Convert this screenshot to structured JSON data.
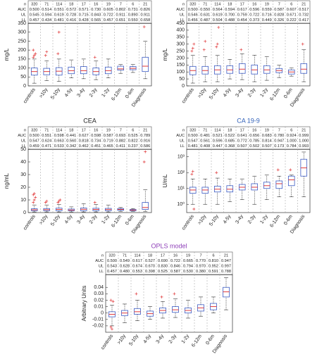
{
  "chart_data": [
    {
      "type": "box",
      "ylabel": "mg/L",
      "categories": [
        "controls",
        ">10y",
        "5-10y",
        "4-5y",
        "3-4y",
        "2-3y",
        "1-2y",
        "6-12m",
        "0-6m",
        "Diagnosis"
      ],
      "table": [
        {
          "label": "n",
          "values": [
            320,
            71,
            114,
            18,
            17,
            16,
            19,
            7,
            6,
            21
          ]
        },
        {
          "label": "AUC",
          "values": [
            "0.500",
            "0.514",
            "0.551",
            "0.572",
            "0.571",
            "0.730",
            "0.605",
            "0.802",
            "0.731",
            "0.826"
          ]
        },
        {
          "label": "UL",
          "values": [
            "0.545",
            "0.594",
            "0.619",
            "0.728",
            "0.715",
            "0.843",
            "0.722",
            "0.911",
            "0.890",
            "0.911"
          ]
        },
        {
          "label": "LL",
          "values": [
            "0.457",
            "0.434",
            "0.481",
            "0.416",
            "0.428",
            "0.565",
            "0.457",
            "0.651",
            "0.550",
            "0.658"
          ]
        }
      ],
      "ylim": [
        0,
        350
      ],
      "yticks": [
        0,
        50,
        100,
        150,
        200,
        250,
        300,
        350
      ],
      "low": [
        15,
        30,
        25,
        45,
        40,
        35,
        45,
        70,
        75,
        40
      ],
      "q1": [
        60,
        62,
        60,
        68,
        68,
        62,
        68,
        88,
        90,
        80
      ],
      "median": [
        80,
        80,
        82,
        85,
        85,
        80,
        85,
        95,
        98,
        110
      ],
      "q3": [
        100,
        98,
        102,
        105,
        108,
        100,
        105,
        110,
        108,
        160
      ],
      "high": [
        150,
        140,
        150,
        145,
        150,
        140,
        150,
        120,
        120,
        250
      ],
      "outliers": [
        [
          160,
          170,
          180,
          200
        ],
        [
          170,
          190
        ],
        [
          180,
          300
        ],
        [],
        [],
        [
          160
        ],
        [],
        [],
        [],
        [
          330
        ]
      ],
      "box_color": "#3b5bc4",
      "median_color": "#e0383a",
      "outlier_color": "#e0383a"
    },
    {
      "type": "box",
      "ylabel": "mg/L",
      "categories": [
        "controls",
        ">10y",
        "5-10y",
        "4-5y",
        "3-4y",
        "2-3y",
        "1-2y",
        "6-12m",
        "0-6m",
        "Diagnosis"
      ],
      "table": [
        {
          "label": "n",
          "values": [
            320,
            71,
            114,
            18,
            17,
            16,
            19,
            7,
            6,
            21
          ]
        },
        {
          "label": "AUC",
          "values": [
            "0.500",
            "0.550",
            "0.564",
            "0.594",
            "0.617",
            "0.596",
            "0.559",
            "0.587",
            "0.607",
            "0.517"
          ]
        },
        {
          "label": "UL",
          "values": [
            "0.546",
            "0.631",
            "0.619",
            "0.700",
            "0.759",
            "0.722",
            "0.716",
            "0.828",
            "0.671",
            "0.732"
          ]
        },
        {
          "label": "LL",
          "values": [
            "0.456",
            "0.487",
            "0.504",
            "0.488",
            "0.454",
            "0.373",
            "0.449",
            "0.326",
            "0.222",
            "0.417"
          ]
        }
      ],
      "ylim": [
        0,
        450
      ],
      "yticks": [
        0,
        50,
        100,
        150,
        200,
        250,
        300,
        350,
        400,
        450
      ],
      "low": [
        20,
        30,
        30,
        50,
        45,
        30,
        40,
        60,
        70,
        30
      ],
      "q1": [
        80,
        85,
        85,
        90,
        90,
        85,
        90,
        95,
        85,
        90
      ],
      "median": [
        110,
        110,
        115,
        115,
        120,
        115,
        115,
        110,
        100,
        120
      ],
      "q3": [
        140,
        140,
        145,
        145,
        160,
        150,
        145,
        125,
        115,
        160
      ],
      "high": [
        220,
        210,
        220,
        190,
        230,
        220,
        210,
        150,
        130,
        260
      ],
      "outliers": [
        [
          250,
          270,
          300
        ],
        [
          260,
          320
        ],
        [
          280,
          300,
          420
        ],
        [],
        [
          260
        ],
        [],
        [],
        [],
        [],
        [
          300
        ]
      ],
      "box_color": "#3b5bc4",
      "median_color": "#e0383a",
      "outlier_color": "#e0383a"
    },
    {
      "type": "box",
      "title": "CEA",
      "title_color": "#222222",
      "ylabel": "ng/mL",
      "categories": [
        "controls",
        ">10y",
        "5-10y",
        "4-5y",
        "3-4y",
        "2-3y",
        "1-2y",
        "6-12m",
        "0-6m",
        "Diagnosis"
      ],
      "table": [
        {
          "label": "n",
          "values": [
            320,
            71,
            114,
            18,
            17,
            16,
            19,
            7,
            6,
            21
          ]
        },
        {
          "label": "AUC",
          "values": [
            "0.500",
            "0.551",
            "0.598",
            "0.441",
            "0.627",
            "0.598",
            "0.587",
            "0.693",
            "0.525",
            "0.789"
          ]
        },
        {
          "label": "UL",
          "values": [
            "0.547",
            "0.624",
            "0.663",
            "0.560",
            "0.818",
            "0.734",
            "0.719",
            "0.882",
            "0.822",
            "0.916"
          ]
        },
        {
          "label": "LL",
          "values": [
            "0.459",
            "0.471",
            "0.533",
            "0.342",
            "0.462",
            "0.451",
            "0.465",
            "0.411",
            "0.237",
            "0.586"
          ]
        }
      ],
      "ylim": [
        0,
        50
      ],
      "yticks": [
        0,
        10,
        20,
        30,
        40,
        50
      ],
      "low": [
        0.5,
        0.5,
        0.5,
        0.5,
        0.5,
        0.5,
        0.5,
        1,
        1,
        1
      ],
      "q1": [
        1.5,
        1.5,
        1.5,
        1.5,
        1.5,
        1.5,
        1.5,
        1.8,
        1.5,
        2.5
      ],
      "median": [
        2.2,
        2.3,
        2.5,
        2,
        2.6,
        2.5,
        2.4,
        2.5,
        2,
        4
      ],
      "q3": [
        3,
        3.2,
        3.5,
        2.8,
        3.6,
        3.4,
        3.3,
        3.2,
        2.5,
        8
      ],
      "high": [
        6,
        6,
        6.5,
        4.5,
        7,
        6.5,
        6,
        4,
        3.2,
        18
      ],
      "outliers": [
        [
          8,
          10,
          12,
          14,
          15
        ],
        [
          8,
          9
        ],
        [
          8,
          9,
          10
        ],
        [],
        [],
        [
          8
        ],
        [],
        [],
        [],
        [
          40,
          48
        ]
      ],
      "box_color": "#3b5bc4",
      "median_color": "#e0383a",
      "outlier_color": "#e0383a"
    },
    {
      "type": "box",
      "title": "CA 19-9",
      "title_color": "#2f5fb8",
      "ylabel": "U/mL",
      "log_scale": true,
      "categories": [
        "controls",
        ">10y",
        "5-10y",
        "4-5y",
        "3-4y",
        "2-3y",
        "1-2y",
        "6-12m",
        "0-6m",
        "Diagnosis"
      ],
      "table": [
        {
          "label": "n",
          "values": [
            320,
            71,
            114,
            18,
            17,
            16,
            19,
            7,
            6,
            21
          ]
        },
        {
          "label": "AUC",
          "values": [
            "0.500",
            "0.481",
            "0.521",
            "0.522",
            "0.641",
            "0.656",
            "0.683",
            "0.780",
            "0.924",
            "0.999"
          ]
        },
        {
          "label": "UL",
          "values": [
            "0.547",
            "0.561",
            "0.596",
            "0.685",
            "0.772",
            "0.785",
            "0.814",
            "0.947",
            "1.000",
            "1.000"
          ]
        },
        {
          "label": "LL",
          "values": [
            "0.481",
            "0.408",
            "0.447",
            "0.368",
            "0.507",
            "0.502",
            "0.507",
            "0.173",
            "0.784",
            "0.993"
          ]
        }
      ],
      "ylim": [
        0.3,
        3000
      ],
      "yticks": [
        {
          "value": 1,
          "label": "10⁰"
        },
        {
          "value": 10,
          "label": "10¹"
        },
        {
          "value": 100,
          "label": "10²"
        },
        {
          "value": 1000,
          "label": "10³"
        }
      ],
      "low": [
        1,
        1,
        1,
        1.5,
        2,
        1,
        2,
        3,
        3,
        3
      ],
      "q1": [
        5,
        5,
        6,
        6,
        8,
        8,
        10,
        10,
        15,
        60
      ],
      "median": [
        8,
        8,
        9,
        9,
        12,
        12,
        15,
        20,
        35,
        200
      ],
      "q3": [
        12,
        12,
        14,
        15,
        18,
        20,
        25,
        30,
        60,
        700
      ],
      "high": [
        40,
        40,
        45,
        40,
        40,
        60,
        70,
        60,
        70,
        2000
      ],
      "outliers": [
        [
          80,
          120,
          0.5
        ],
        [],
        [
          100
        ],
        [],
        [],
        [],
        [],
        [
          150
        ],
        [
          150
        ],
        []
      ],
      "box_color": "#3b5bc4",
      "median_color": "#e0383a",
      "outlier_color": "#e0383a"
    },
    {
      "type": "box",
      "title": "OPLS model",
      "title_color": "#8e3fb8",
      "ylabel": "Arbitrary Units",
      "categories": [
        "controls",
        ">10y",
        "5-10y",
        "4-5y",
        "3-4y",
        "2-3y",
        "1-2y",
        "6-12m",
        "0-6m",
        "Diagnosis"
      ],
      "table": [
        {
          "label": "n",
          "values": [
            320,
            71,
            114,
            18,
            17,
            16,
            19,
            7,
            6,
            21
          ]
        },
        {
          "label": "AUC",
          "values": [
            "0.500",
            "0.549",
            "0.617",
            "0.527",
            "0.690",
            "0.722",
            "0.665",
            "0.770",
            "0.810",
            "0.947"
          ]
        },
        {
          "label": "UL",
          "values": [
            "0.543",
            "0.628",
            "0.674",
            "0.670",
            "0.830",
            "0.846",
            "0.794",
            "0.970",
            "0.952",
            "0.997"
          ]
        },
        {
          "label": "LL",
          "values": [
            "0.457",
            "0.480",
            "0.553",
            "0.398",
            "0.525",
            "0.587",
            "0.530",
            "0.380",
            "0.591",
            "0.788"
          ]
        }
      ],
      "ylim": [
        -0.03,
        0.06
      ],
      "yticks": [
        -0.02,
        -0.01,
        0,
        0.01,
        0.02,
        0.03,
        0.04
      ],
      "low": [
        -0.02,
        -0.015,
        -0.012,
        -0.01,
        -0.008,
        -0.007,
        -0.008,
        -0.005,
        0,
        0.005
      ],
      "q1": [
        -0.006,
        -0.004,
        -0.002,
        -0.005,
        0,
        0.001,
        0,
        0.003,
        0.005,
        0.025
      ],
      "median": [
        -0.002,
        0,
        0.002,
        -0.001,
        0.004,
        0.005,
        0.004,
        0.008,
        0.01,
        0.033
      ],
      "q3": [
        0.002,
        0.004,
        0.007,
        0.003,
        0.008,
        0.01,
        0.008,
        0.013,
        0.015,
        0.04
      ],
      "high": [
        0.012,
        0.014,
        0.02,
        0.01,
        0.018,
        0.022,
        0.02,
        0.025,
        0.025,
        0.055
      ],
      "outliers": [
        [
          -0.022,
          -0.025,
          0.018,
          0.02
        ],
        [],
        [
          0.03
        ],
        [],
        [
          0.025
        ],
        [
          0.03
        ],
        [],
        [],
        [],
        []
      ],
      "box_color": "#3b5bc4",
      "median_color": "#e0383a",
      "outlier_color": "#e0383a"
    }
  ]
}
